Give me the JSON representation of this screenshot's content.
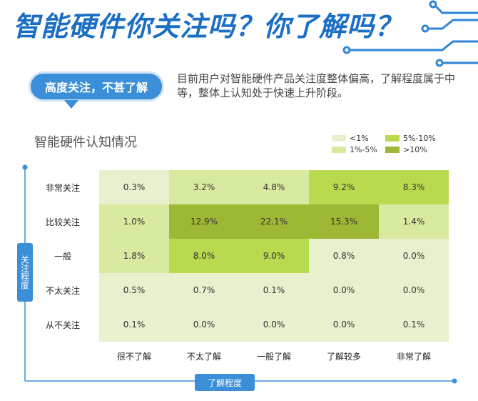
{
  "header": {
    "title": "智能硬件你关注吗？你了解吗？",
    "bubble": "高度关注，不甚了解",
    "summary": "目前用户对智能硬件产品关注度整体偏高，了解程度属于中等，整体上认知处于快速上升阶段。"
  },
  "colors": {
    "accent": "#3a8fd8",
    "title": "#1a6fc4",
    "lt1": "#e7f1cd",
    "p1to5": "#d7eaa0",
    "p5to10": "#b9d94f",
    "gt10": "#9cb834"
  },
  "legend": [
    {
      "label": "<1%",
      "color": "#e7f1cd"
    },
    {
      "label": "5%-10%",
      "color": "#b9d94f"
    },
    {
      "label": "1%-5%",
      "color": "#d7eaa0"
    },
    {
      "label": ">10%",
      "color": "#9cb834"
    }
  ],
  "chart_data": {
    "type": "heatmap",
    "title": "智能硬件认知情况",
    "xlabel": "了解程度",
    "ylabel": "关注程度",
    "x": [
      "很不了解",
      "不太了解",
      "一般了解",
      "了解较多",
      "非常了解"
    ],
    "y": [
      "非常关注",
      "比较关注",
      "一般",
      "不太关注",
      "从不关注"
    ],
    "values": [
      [
        0.3,
        3.2,
        4.8,
        9.2,
        8.3
      ],
      [
        1.0,
        12.9,
        22.1,
        15.3,
        1.4
      ],
      [
        1.8,
        8.0,
        9.0,
        0.8,
        0.0
      ],
      [
        0.5,
        0.7,
        0.1,
        0.0,
        0.0
      ],
      [
        0.1,
        0.0,
        0.0,
        0.0,
        0.1
      ]
    ],
    "labels": [
      [
        "0.3%",
        "3.2%",
        "4.8%",
        "9.2%",
        "8.3%"
      ],
      [
        "1.0%",
        "12.9%",
        "22.1%",
        "15.3%",
        "1.4%"
      ],
      [
        "1.8%",
        "8.0%",
        "9.0%",
        "0.8%",
        "0.0%"
      ],
      [
        "0.5%",
        "0.7%",
        "0.1%",
        "0.0%",
        "0.0%"
      ],
      [
        "0.1%",
        "0.0%",
        "0.0%",
        "0.0%",
        "0.1%"
      ]
    ],
    "color_bins": [
      "<1%",
      "1%-5%",
      "5%-10%",
      ">10%"
    ]
  }
}
